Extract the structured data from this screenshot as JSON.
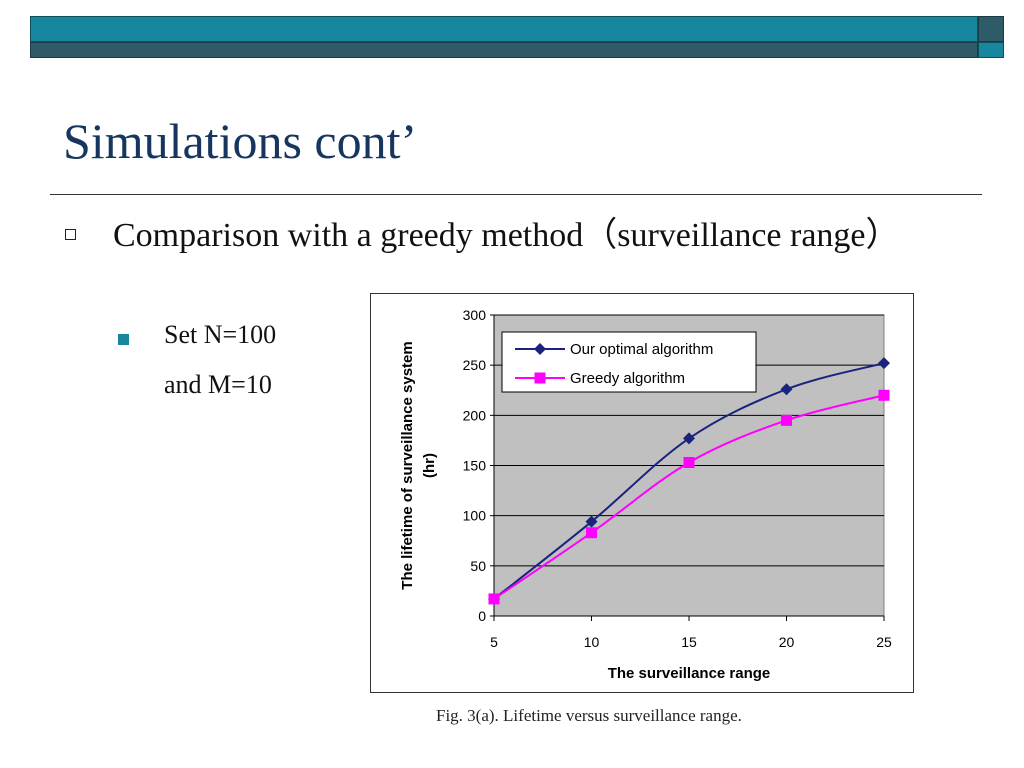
{
  "slide": {
    "title": "Simulations cont’",
    "bullet_1": "Comparison with a greedy method（surveillance range）",
    "bullet_2_line1": "Set  N=100",
    "bullet_2_line2": "and M=10",
    "caption": "Fig. 3(a). Lifetime versus surveillance range."
  },
  "colors": {
    "bar_light": "#17879f",
    "bar_dark": "#2e5b67",
    "title": "#16365f",
    "plot_bg": "#c0c0c0",
    "series_optimal": "#1a237e",
    "series_greedy": "#ff00ff"
  },
  "chart_data": {
    "type": "line",
    "title": "",
    "xlabel": "The surveillance range",
    "ylabel": "The lifetime of surveillance system (hr)",
    "xlim": [
      5,
      25
    ],
    "ylim": [
      0,
      300
    ],
    "x_ticks": [
      5,
      10,
      15,
      20,
      25
    ],
    "y_ticks": [
      0,
      50,
      100,
      150,
      200,
      250,
      300
    ],
    "grid": "horizontal",
    "legend_position": "top-left",
    "x": [
      5,
      10,
      15,
      20,
      25
    ],
    "series": [
      {
        "name": "Our optimal algorithm",
        "values": [
          17,
          94,
          177,
          226,
          252
        ],
        "marker": "diamond",
        "color": "#1a237e"
      },
      {
        "name": "Greedy algorithm",
        "values": [
          17,
          83,
          153,
          195,
          220
        ],
        "marker": "square",
        "color": "#ff00ff"
      }
    ]
  }
}
